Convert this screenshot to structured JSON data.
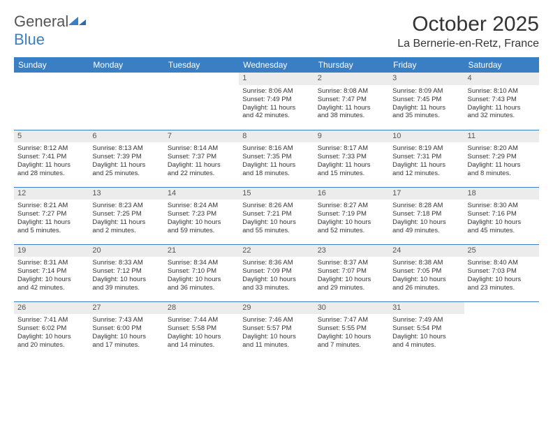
{
  "logo": {
    "text1": "General",
    "text2": "Blue"
  },
  "title": "October 2025",
  "location": "La Bernerie-en-Retz, France",
  "colors": {
    "header_bg": "#3a7fc4",
    "header_text": "#ffffff",
    "daynum_bg": "#ececec",
    "border": "#3a7fc4",
    "text": "#333333"
  },
  "weekdays": [
    "Sunday",
    "Monday",
    "Tuesday",
    "Wednesday",
    "Thursday",
    "Friday",
    "Saturday"
  ],
  "weeks": [
    [
      null,
      null,
      null,
      {
        "n": "1",
        "sr": "Sunrise: 8:06 AM",
        "ss": "Sunset: 7:49 PM",
        "d1": "Daylight: 11 hours",
        "d2": "and 42 minutes."
      },
      {
        "n": "2",
        "sr": "Sunrise: 8:08 AM",
        "ss": "Sunset: 7:47 PM",
        "d1": "Daylight: 11 hours",
        "d2": "and 38 minutes."
      },
      {
        "n": "3",
        "sr": "Sunrise: 8:09 AM",
        "ss": "Sunset: 7:45 PM",
        "d1": "Daylight: 11 hours",
        "d2": "and 35 minutes."
      },
      {
        "n": "4",
        "sr": "Sunrise: 8:10 AM",
        "ss": "Sunset: 7:43 PM",
        "d1": "Daylight: 11 hours",
        "d2": "and 32 minutes."
      }
    ],
    [
      {
        "n": "5",
        "sr": "Sunrise: 8:12 AM",
        "ss": "Sunset: 7:41 PM",
        "d1": "Daylight: 11 hours",
        "d2": "and 28 minutes."
      },
      {
        "n": "6",
        "sr": "Sunrise: 8:13 AM",
        "ss": "Sunset: 7:39 PM",
        "d1": "Daylight: 11 hours",
        "d2": "and 25 minutes."
      },
      {
        "n": "7",
        "sr": "Sunrise: 8:14 AM",
        "ss": "Sunset: 7:37 PM",
        "d1": "Daylight: 11 hours",
        "d2": "and 22 minutes."
      },
      {
        "n": "8",
        "sr": "Sunrise: 8:16 AM",
        "ss": "Sunset: 7:35 PM",
        "d1": "Daylight: 11 hours",
        "d2": "and 18 minutes."
      },
      {
        "n": "9",
        "sr": "Sunrise: 8:17 AM",
        "ss": "Sunset: 7:33 PM",
        "d1": "Daylight: 11 hours",
        "d2": "and 15 minutes."
      },
      {
        "n": "10",
        "sr": "Sunrise: 8:19 AM",
        "ss": "Sunset: 7:31 PM",
        "d1": "Daylight: 11 hours",
        "d2": "and 12 minutes."
      },
      {
        "n": "11",
        "sr": "Sunrise: 8:20 AM",
        "ss": "Sunset: 7:29 PM",
        "d1": "Daylight: 11 hours",
        "d2": "and 8 minutes."
      }
    ],
    [
      {
        "n": "12",
        "sr": "Sunrise: 8:21 AM",
        "ss": "Sunset: 7:27 PM",
        "d1": "Daylight: 11 hours",
        "d2": "and 5 minutes."
      },
      {
        "n": "13",
        "sr": "Sunrise: 8:23 AM",
        "ss": "Sunset: 7:25 PM",
        "d1": "Daylight: 11 hours",
        "d2": "and 2 minutes."
      },
      {
        "n": "14",
        "sr": "Sunrise: 8:24 AM",
        "ss": "Sunset: 7:23 PM",
        "d1": "Daylight: 10 hours",
        "d2": "and 59 minutes."
      },
      {
        "n": "15",
        "sr": "Sunrise: 8:26 AM",
        "ss": "Sunset: 7:21 PM",
        "d1": "Daylight: 10 hours",
        "d2": "and 55 minutes."
      },
      {
        "n": "16",
        "sr": "Sunrise: 8:27 AM",
        "ss": "Sunset: 7:19 PM",
        "d1": "Daylight: 10 hours",
        "d2": "and 52 minutes."
      },
      {
        "n": "17",
        "sr": "Sunrise: 8:28 AM",
        "ss": "Sunset: 7:18 PM",
        "d1": "Daylight: 10 hours",
        "d2": "and 49 minutes."
      },
      {
        "n": "18",
        "sr": "Sunrise: 8:30 AM",
        "ss": "Sunset: 7:16 PM",
        "d1": "Daylight: 10 hours",
        "d2": "and 45 minutes."
      }
    ],
    [
      {
        "n": "19",
        "sr": "Sunrise: 8:31 AM",
        "ss": "Sunset: 7:14 PM",
        "d1": "Daylight: 10 hours",
        "d2": "and 42 minutes."
      },
      {
        "n": "20",
        "sr": "Sunrise: 8:33 AM",
        "ss": "Sunset: 7:12 PM",
        "d1": "Daylight: 10 hours",
        "d2": "and 39 minutes."
      },
      {
        "n": "21",
        "sr": "Sunrise: 8:34 AM",
        "ss": "Sunset: 7:10 PM",
        "d1": "Daylight: 10 hours",
        "d2": "and 36 minutes."
      },
      {
        "n": "22",
        "sr": "Sunrise: 8:36 AM",
        "ss": "Sunset: 7:09 PM",
        "d1": "Daylight: 10 hours",
        "d2": "and 33 minutes."
      },
      {
        "n": "23",
        "sr": "Sunrise: 8:37 AM",
        "ss": "Sunset: 7:07 PM",
        "d1": "Daylight: 10 hours",
        "d2": "and 29 minutes."
      },
      {
        "n": "24",
        "sr": "Sunrise: 8:38 AM",
        "ss": "Sunset: 7:05 PM",
        "d1": "Daylight: 10 hours",
        "d2": "and 26 minutes."
      },
      {
        "n": "25",
        "sr": "Sunrise: 8:40 AM",
        "ss": "Sunset: 7:03 PM",
        "d1": "Daylight: 10 hours",
        "d2": "and 23 minutes."
      }
    ],
    [
      {
        "n": "26",
        "sr": "Sunrise: 7:41 AM",
        "ss": "Sunset: 6:02 PM",
        "d1": "Daylight: 10 hours",
        "d2": "and 20 minutes."
      },
      {
        "n": "27",
        "sr": "Sunrise: 7:43 AM",
        "ss": "Sunset: 6:00 PM",
        "d1": "Daylight: 10 hours",
        "d2": "and 17 minutes."
      },
      {
        "n": "28",
        "sr": "Sunrise: 7:44 AM",
        "ss": "Sunset: 5:58 PM",
        "d1": "Daylight: 10 hours",
        "d2": "and 14 minutes."
      },
      {
        "n": "29",
        "sr": "Sunrise: 7:46 AM",
        "ss": "Sunset: 5:57 PM",
        "d1": "Daylight: 10 hours",
        "d2": "and 11 minutes."
      },
      {
        "n": "30",
        "sr": "Sunrise: 7:47 AM",
        "ss": "Sunset: 5:55 PM",
        "d1": "Daylight: 10 hours",
        "d2": "and 7 minutes."
      },
      {
        "n": "31",
        "sr": "Sunrise: 7:49 AM",
        "ss": "Sunset: 5:54 PM",
        "d1": "Daylight: 10 hours",
        "d2": "and 4 minutes."
      },
      null
    ]
  ]
}
